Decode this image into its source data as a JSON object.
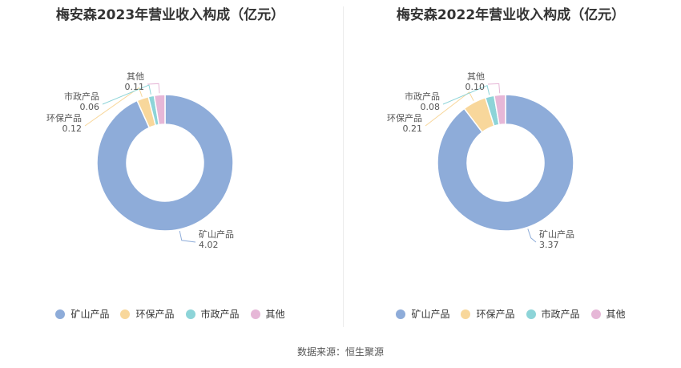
{
  "source": "数据来源：恒生聚源",
  "chart_data": [
    {
      "type": "pie",
      "title": "梅安森2023年营业收入构成（亿元）",
      "categories": [
        "矿山产品",
        "环保产品",
        "市政产品",
        "其他"
      ],
      "values": [
        4.02,
        0.12,
        0.06,
        0.11
      ],
      "colors": [
        "#8eacd9",
        "#f8d79b",
        "#8dd4d8",
        "#e6b7d7"
      ],
      "legend": "bottom"
    },
    {
      "type": "pie",
      "title": "梅安森2022年营业收入构成（亿元）",
      "categories": [
        "矿山产品",
        "环保产品",
        "市政产品",
        "其他"
      ],
      "values": [
        3.37,
        0.21,
        0.08,
        0.1
      ],
      "colors": [
        "#8eacd9",
        "#f8d79b",
        "#8dd4d8",
        "#e6b7d7"
      ],
      "legend": "bottom"
    }
  ]
}
